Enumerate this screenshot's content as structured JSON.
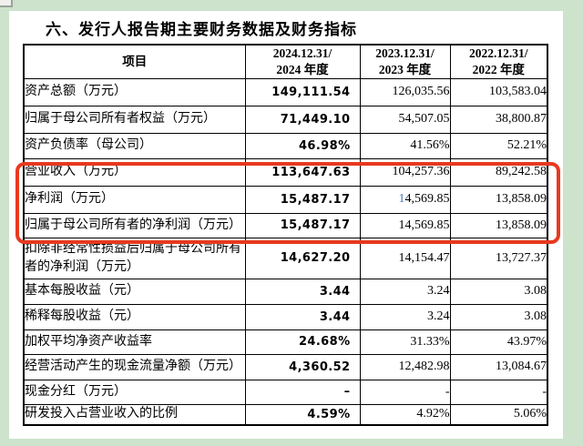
{
  "page": {
    "title": "六、发行人报告期主要财务数据及财务指标"
  },
  "colors": {
    "page_background": "#cde3cb",
    "paper": "#ffffff",
    "table_border": "#000000",
    "highlight_red": "#e8391f",
    "cursor_blue": "#4a7ab5"
  },
  "table": {
    "header": {
      "item": "项目",
      "periods": [
        "2024.12.31/\n2024 年度",
        "2023.12.31/\n2023 年度",
        "2022.12.31/\n2022 年度"
      ]
    },
    "rows": [
      {
        "label": "资产总额（万元）",
        "v2024": "149,111.54",
        "v2023": "126,035.56",
        "v2022": "103,583.04"
      },
      {
        "label": "归属于母公司所有者权益（万元）",
        "v2024": "71,449.10",
        "v2023": "54,507.05",
        "v2022": "38,800.87"
      },
      {
        "label": "资产负债率（母公司）",
        "v2024": "46.98%",
        "v2023": "41.56%",
        "v2022": "52.21%"
      },
      {
        "label": "营业收入（万元）",
        "v2024": "113,647.63",
        "v2023": "104,257.36",
        "v2022": "89,242.58",
        "highlighted": true
      },
      {
        "label": "净利润（万元）",
        "v2024": "15,487.17",
        "v2023": "14,569.85",
        "v2022": "13,858.09",
        "highlighted": true,
        "blue_first_2023": true
      },
      {
        "label": "归属于母公司所有者的净利润（万元）",
        "v2024": "15,487.17",
        "v2023": "14,569.85",
        "v2022": "13,858.09",
        "highlighted": true
      },
      {
        "label": "扣除非经常性损益后归属于母公司所有者的净利润（万元）",
        "v2024": "14,627.20",
        "v2023": "14,154.47",
        "v2022": "13,727.37"
      },
      {
        "label": "基本每股收益（元）",
        "v2024": "3.44",
        "v2023": "3.24",
        "v2022": "3.08"
      },
      {
        "label": "稀释每股收益（元）",
        "v2024": "3.44",
        "v2023": "3.24",
        "v2022": "3.08"
      },
      {
        "label": "加权平均净资产收益率",
        "v2024": "24.68%",
        "v2023": "31.33%",
        "v2022": "43.97%"
      },
      {
        "label": "经营活动产生的现金流量净额（万元）",
        "v2024": "4,360.52",
        "v2023": "12,482.98",
        "v2022": "13,084.67"
      },
      {
        "label": "现金分红（万元）",
        "v2024": "–",
        "v2023": "-",
        "v2022": "-"
      },
      {
        "label": "研发投入占营业收入的比例",
        "v2024": "4.59%",
        "v2023": "4.92%",
        "v2022": "5.06%"
      }
    ],
    "annotation": {
      "type": "highlight-box",
      "color": "#e8391f",
      "covers_rows": [
        "营业收入（万元）",
        "净利润（万元）",
        "归属于母公司所有者的净利润（万元）"
      ]
    }
  }
}
